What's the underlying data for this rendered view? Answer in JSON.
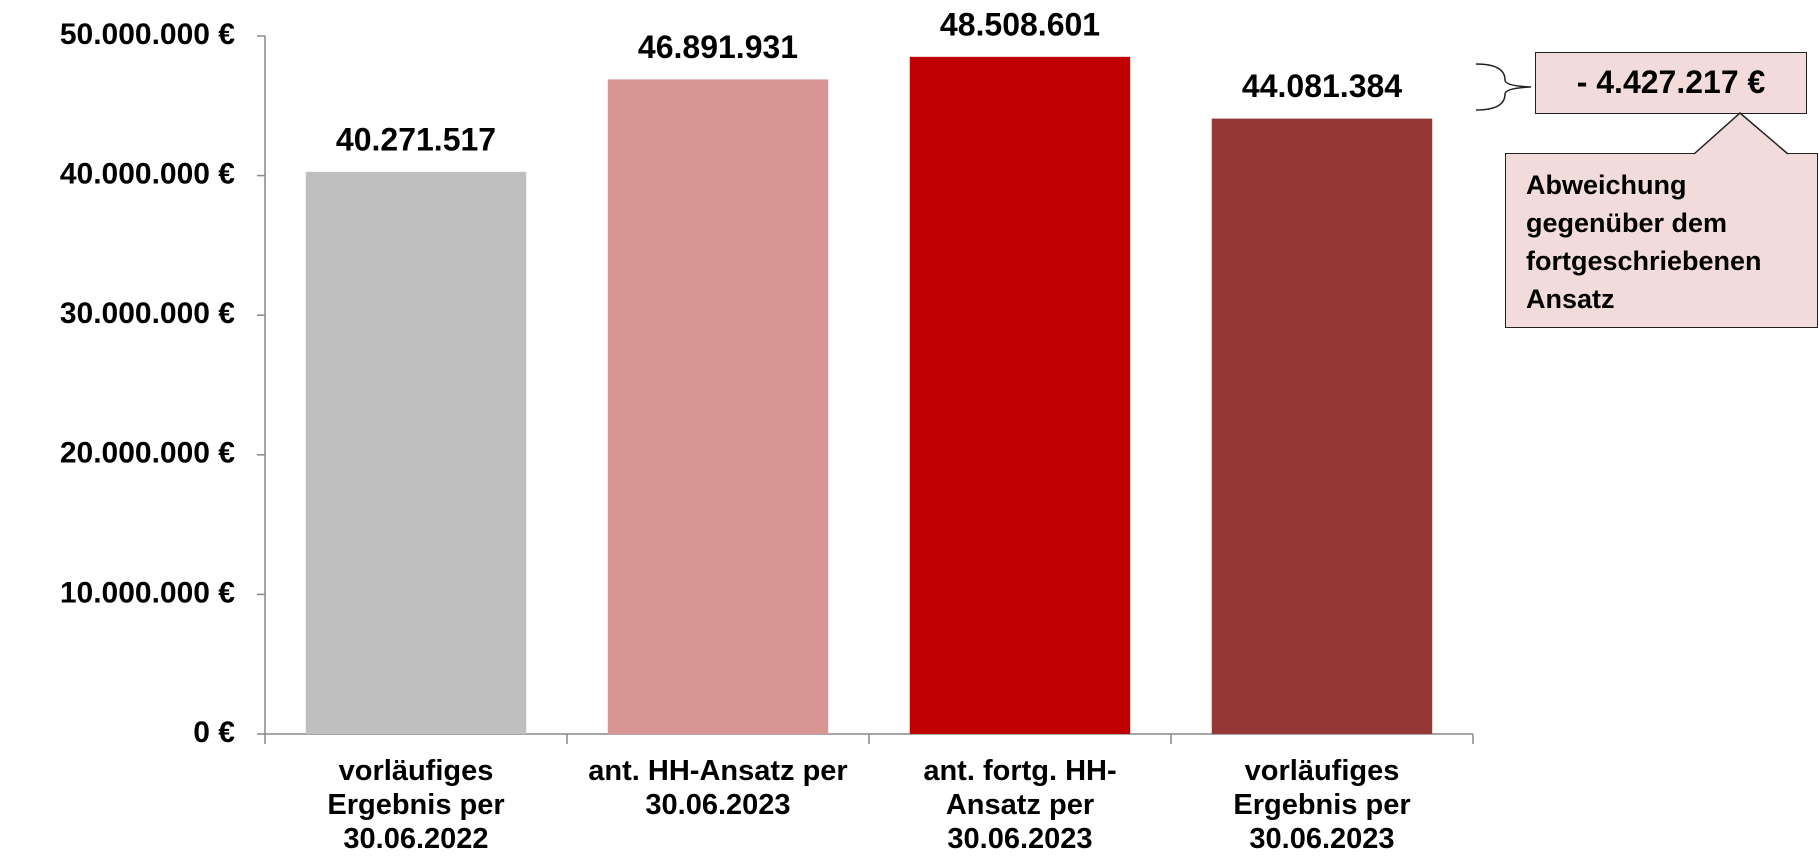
{
  "chart_data": {
    "type": "bar",
    "categories": [
      "vorläufiges\nErgebnis per\n30.06.2022",
      "ant. HH-Ansatz per\n30.06.2023",
      "ant. fortg. HH-\nAnsatz per\n30.06.2023",
      "vorläufiges\nErgebnis per\n30.06.2023"
    ],
    "values": [
      40271517,
      46891931,
      48508601,
      44081384
    ],
    "value_labels": [
      "40.271.517",
      "46.891.931",
      "48.508.601",
      "44.081.384"
    ],
    "colors": [
      "#bfbfbf",
      "#d99594",
      "#c00000",
      "#953735"
    ],
    "ylim": [
      0,
      50000000
    ],
    "yticks": [
      {
        "value": 0,
        "label": "0 €"
      },
      {
        "value": 10000000,
        "label": "10.000.000 €"
      },
      {
        "value": 20000000,
        "label": "20.000.000 €"
      },
      {
        "value": 30000000,
        "label": "30.000.000 €"
      },
      {
        "value": 40000000,
        "label": "40.000.000 €"
      },
      {
        "value": 50000000,
        "label": "50.000.000 €"
      }
    ],
    "grid": false,
    "annotations": [
      "- 4.427.217 €",
      "Abweichung\ngegenüber dem\nfortgeschriebenen\nAnsatz"
    ]
  }
}
